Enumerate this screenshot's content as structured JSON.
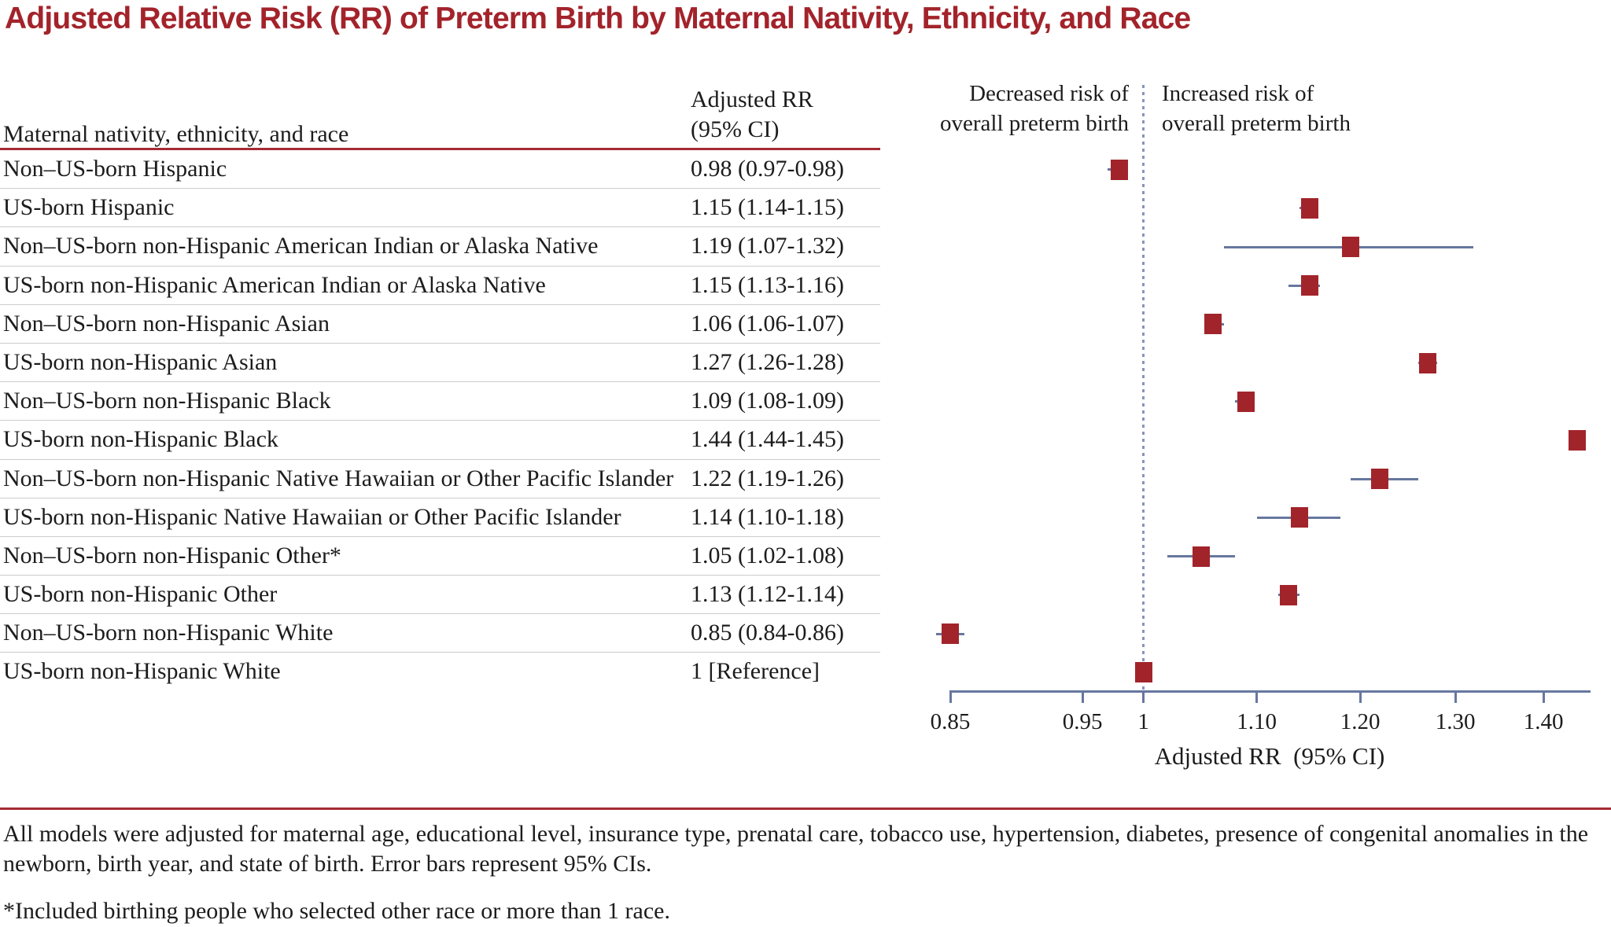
{
  "title": "Adjusted Relative Risk (RR) of Preterm Birth by Maternal Nativity, Ethnicity, and Race",
  "table": {
    "col1_header": "Maternal nativity, ethnicity, and race",
    "col2_header_line1": "Adjusted RR",
    "col2_header_line2": "(95% CI)"
  },
  "plot": {
    "decreased_label_line1": "Decreased risk of",
    "decreased_label_line2": "overall preterm birth",
    "increased_label_line1": "Increased risk of",
    "increased_label_line2": "overall preterm birth",
    "axis_label": "Adjusted RR  (95% CI)"
  },
  "chart_data": {
    "type": "scatter",
    "subtype": "forest-plot",
    "x_scale": "log",
    "xlim": [
      0.85,
      1.455
    ],
    "x_ticks": [
      {
        "v": 0.85,
        "label": "0.85"
      },
      {
        "v": 0.95,
        "label": "0.95"
      },
      {
        "v": 1.0,
        "label": "1"
      },
      {
        "v": 1.1,
        "label": "1.10"
      },
      {
        "v": 1.2,
        "label": "1.20"
      },
      {
        "v": 1.3,
        "label": "1.30"
      },
      {
        "v": 1.4,
        "label": "1.40"
      }
    ],
    "xlabel": "Adjusted RR  (95% CI)",
    "reference_line_x": 1,
    "grid": false,
    "rows": [
      {
        "label": "Non–US-born Hispanic",
        "value": "0.98 (0.97-0.98)",
        "rr": 0.98,
        "lo": 0.97,
        "hi": 0.98,
        "ref": false
      },
      {
        "label": "US-born Hispanic",
        "value": "1.15 (1.14-1.15)",
        "rr": 1.15,
        "lo": 1.14,
        "hi": 1.15,
        "ref": false
      },
      {
        "label": "Non–US-born non-Hispanic American Indian or Alaska Native",
        "value": "1.19 (1.07-1.32)",
        "rr": 1.19,
        "lo": 1.07,
        "hi": 1.32,
        "ref": false
      },
      {
        "label": "US-born non-Hispanic American Indian or Alaska Native",
        "value": "1.15 (1.13-1.16)",
        "rr": 1.15,
        "lo": 1.13,
        "hi": 1.16,
        "ref": false
      },
      {
        "label": "Non–US-born non-Hispanic Asian",
        "value": "1.06 (1.06-1.07)",
        "rr": 1.06,
        "lo": 1.06,
        "hi": 1.07,
        "ref": false
      },
      {
        "label": "US-born non-Hispanic Asian",
        "value": "1.27 (1.26-1.28)",
        "rr": 1.27,
        "lo": 1.26,
        "hi": 1.28,
        "ref": false
      },
      {
        "label": "Non–US-born non-Hispanic Black",
        "value": "1.09 (1.08-1.09)",
        "rr": 1.09,
        "lo": 1.08,
        "hi": 1.09,
        "ref": false
      },
      {
        "label": "US-born non-Hispanic Black",
        "value": "1.44 (1.44-1.45)",
        "rr": 1.44,
        "lo": 1.44,
        "hi": 1.45,
        "ref": false
      },
      {
        "label": "Non–US-born non-Hispanic Native Hawaiian or Other Pacific Islander",
        "value": "1.22 (1.19-1.26)",
        "rr": 1.22,
        "lo": 1.19,
        "hi": 1.26,
        "ref": false
      },
      {
        "label": "US-born non-Hispanic Native Hawaiian or Other Pacific Islander",
        "value": "1.14 (1.10-1.18)",
        "rr": 1.14,
        "lo": 1.1,
        "hi": 1.18,
        "ref": false
      },
      {
        "label": "Non–US-born non-Hispanic Other*",
        "value": "1.05 (1.02-1.08)",
        "rr": 1.05,
        "lo": 1.02,
        "hi": 1.08,
        "ref": false
      },
      {
        "label": "US-born non-Hispanic Other",
        "value": "1.13 (1.12-1.14)",
        "rr": 1.13,
        "lo": 1.12,
        "hi": 1.14,
        "ref": false
      },
      {
        "label": "Non–US-born non-Hispanic White",
        "value": "0.85 (0.84-0.86)",
        "rr": 0.85,
        "lo": 0.84,
        "hi": 0.86,
        "ref": false
      },
      {
        "label": "US-born non-Hispanic White",
        "value": "1 [Reference]",
        "rr": 1.0,
        "lo": null,
        "hi": null,
        "ref": true
      }
    ]
  },
  "footnotes": [
    "All models were adjusted for maternal age, educational level, insurance type, prenatal care, tobacco use, hypertension, diabetes, presence of congenital anomalies in the newborn, birth year, and state of birth. Error bars represent 95% CIs.",
    "*Included birthing people who selected other race or more than 1 race."
  ],
  "colors": {
    "title_red": "#A3232B",
    "rule_red": "#A52A32",
    "marker_red": "#A2242B",
    "line_blue": "#67779F",
    "dotted_blue": "#8A93BD",
    "text_dark": "#1C1C1C",
    "sep_gray": "#CCCCCC"
  }
}
